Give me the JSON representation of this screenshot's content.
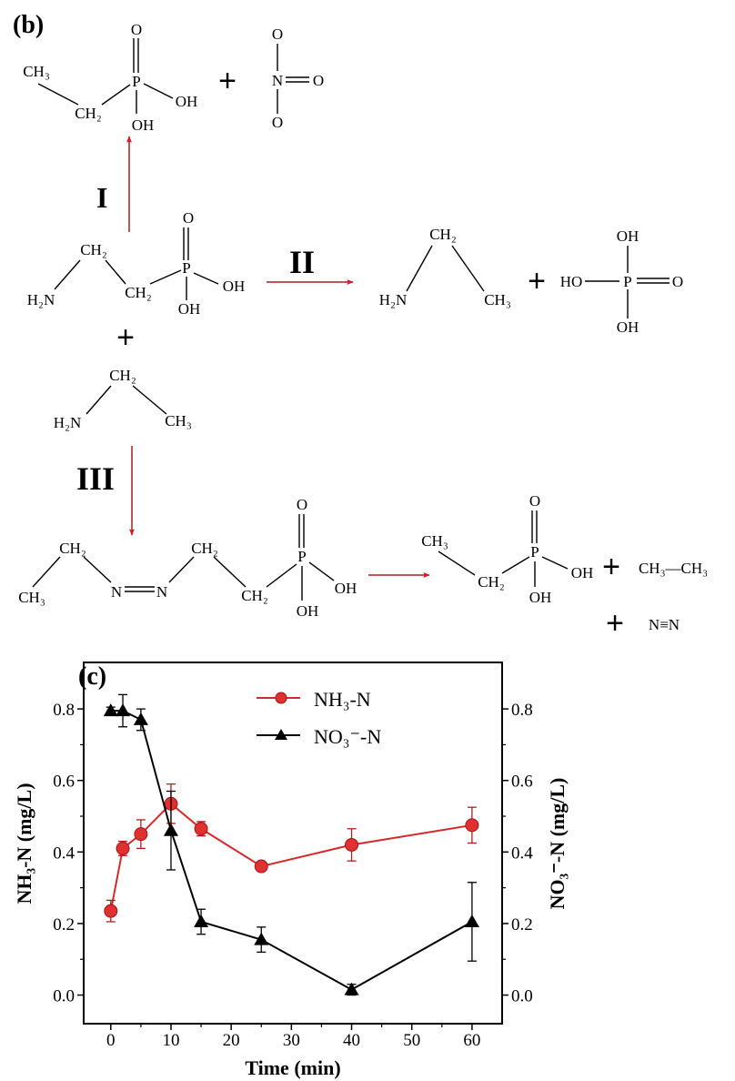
{
  "scheme": {
    "panel_label": "(b)",
    "plus": "+",
    "arrow_color": "#e0141e",
    "pathway_labels": {
      "I": "I",
      "II": "II",
      "III": "III"
    },
    "top_product": {
      "ch3": "CH₃",
      "ch2": "CH₂",
      "p": "P",
      "o": "O",
      "oh_right": "OH",
      "oh_bottom": "OH"
    },
    "nitrate": {
      "n": "N",
      "o_top": "O",
      "o_right": "O",
      "o_bottom": "O"
    },
    "reactant": {
      "ch2_top": "CH₂",
      "h2n": "H₂N",
      "ch2": "CH₂",
      "p": "P",
      "o": "O",
      "oh_right": "OH",
      "oh_bottom": "OH"
    },
    "ethylamine_product": {
      "ch2": "CH₂",
      "h2n": "H₂N",
      "ch3": "CH₃"
    },
    "phosphoric_acid": {
      "oh_top": "OH",
      "ho": "HO",
      "p": "P",
      "o": "O",
      "oh_bottom": "OH"
    },
    "ethylamine": {
      "ch2": "CH₂",
      "h2n": "H₂N",
      "ch3": "CH₃"
    },
    "azo": {
      "ch2_a": "CH₂",
      "ch3": "CH₃",
      "n1": "N",
      "n2": "N",
      "ch2_b": "CH₂",
      "ch2_c": "CH₂",
      "p": "P",
      "o": "O",
      "oh_right": "OH",
      "oh_bottom": "OH"
    },
    "final_product": {
      "ch3": "CH₃",
      "ch2": "CH₂",
      "p": "P",
      "o": "O",
      "oh_right": "OH",
      "oh_bottom": "OH"
    },
    "ethane": "CH₃—CH₃",
    "nitrogen": "N≡N"
  },
  "chart_data": {
    "panel_label": "(c)",
    "type": "line",
    "xlabel": "Time (min)",
    "ylabel_left": "NH₃-N (mg/L)",
    "ylabel_right": "NO₃⁻-N (mg/L)",
    "xlim": [
      -4.5,
      65
    ],
    "ylim": [
      -0.08,
      0.93
    ],
    "xticks": [
      "0",
      "10",
      "20",
      "30",
      "40",
      "50",
      "60"
    ],
    "yticks": [
      "0.0",
      "0.2",
      "0.4",
      "0.6",
      "0.8"
    ],
    "grid": false,
    "legend_position": "top-center",
    "series": [
      {
        "name": "NH₃-N",
        "color": "#d42a2a",
        "marker": "circle",
        "x": [
          0,
          2,
          5,
          10,
          15,
          25,
          40,
          60
        ],
        "y": [
          0.235,
          0.41,
          0.45,
          0.535,
          0.465,
          0.36,
          0.42,
          0.475
        ],
        "err": [
          0.03,
          0.02,
          0.04,
          0.055,
          0.02,
          0.01,
          0.045,
          0.05
        ]
      },
      {
        "name": "NO₃⁻-N",
        "color": "#000000",
        "marker": "triangle",
        "x": [
          0,
          2,
          5,
          10,
          15,
          25,
          40,
          60
        ],
        "y": [
          0.795,
          0.795,
          0.77,
          0.46,
          0.205,
          0.155,
          0.015,
          0.205
        ],
        "err": [
          0.01,
          0.045,
          0.03,
          0.11,
          0.035,
          0.035,
          0.015,
          0.11
        ]
      }
    ]
  }
}
